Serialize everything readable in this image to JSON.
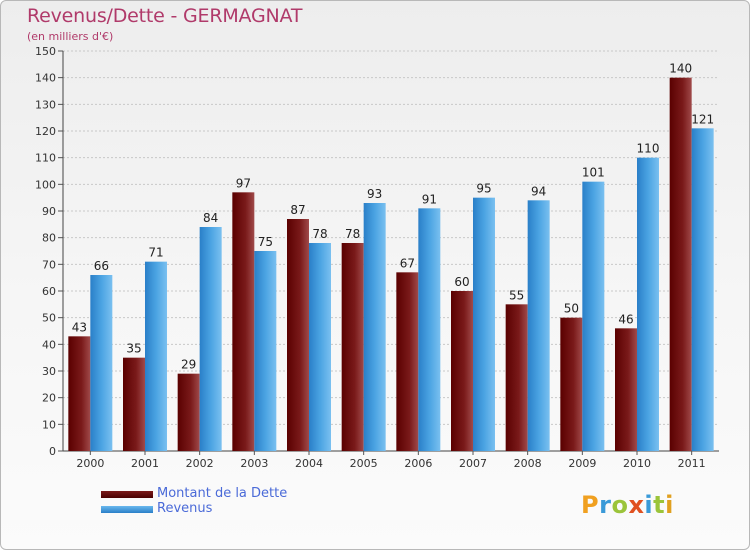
{
  "colors": {
    "dette": "#7a1a1a",
    "revenus": "#4aa3e2",
    "title": "#b03a6a",
    "legend_text": "#4a6ad8"
  },
  "title": "Revenus/Dette - GERMAGNAT",
  "subtitle": "(en milliers d'€)",
  "legend": {
    "dette_label": "Montant de la Dette",
    "revenus_label": "Revenus"
  },
  "logo": {
    "text": "Proxiti",
    "letters": [
      {
        "ch": "P",
        "color": "#f0a020"
      },
      {
        "ch": "r",
        "color": "#3a9ad8"
      },
      {
        "ch": "o",
        "color": "#9bc43a"
      },
      {
        "ch": "x",
        "color": "#e05020"
      },
      {
        "ch": "i",
        "color": "#3a9ad8"
      },
      {
        "ch": "t",
        "color": "#9bc43a"
      },
      {
        "ch": "i",
        "color": "#e0a020"
      }
    ]
  },
  "chart_data": {
    "type": "bar",
    "categories": [
      "2000",
      "2001",
      "2002",
      "2003",
      "2004",
      "2005",
      "2006",
      "2007",
      "2008",
      "2009",
      "2010",
      "2011"
    ],
    "series": [
      {
        "name": "Montant de la Dette",
        "values": [
          43,
          35,
          29,
          97,
          87,
          78,
          67,
          60,
          55,
          50,
          46,
          140
        ]
      },
      {
        "name": "Revenus",
        "values": [
          66,
          71,
          84,
          75,
          78,
          93,
          91,
          95,
          94,
          101,
          110,
          121
        ]
      }
    ],
    "ylim": [
      0,
      150
    ],
    "yticks": [
      0,
      10,
      20,
      30,
      40,
      50,
      60,
      70,
      80,
      90,
      100,
      110,
      120,
      130,
      140,
      150
    ],
    "grid": true,
    "legend_position": "bottom-left"
  }
}
